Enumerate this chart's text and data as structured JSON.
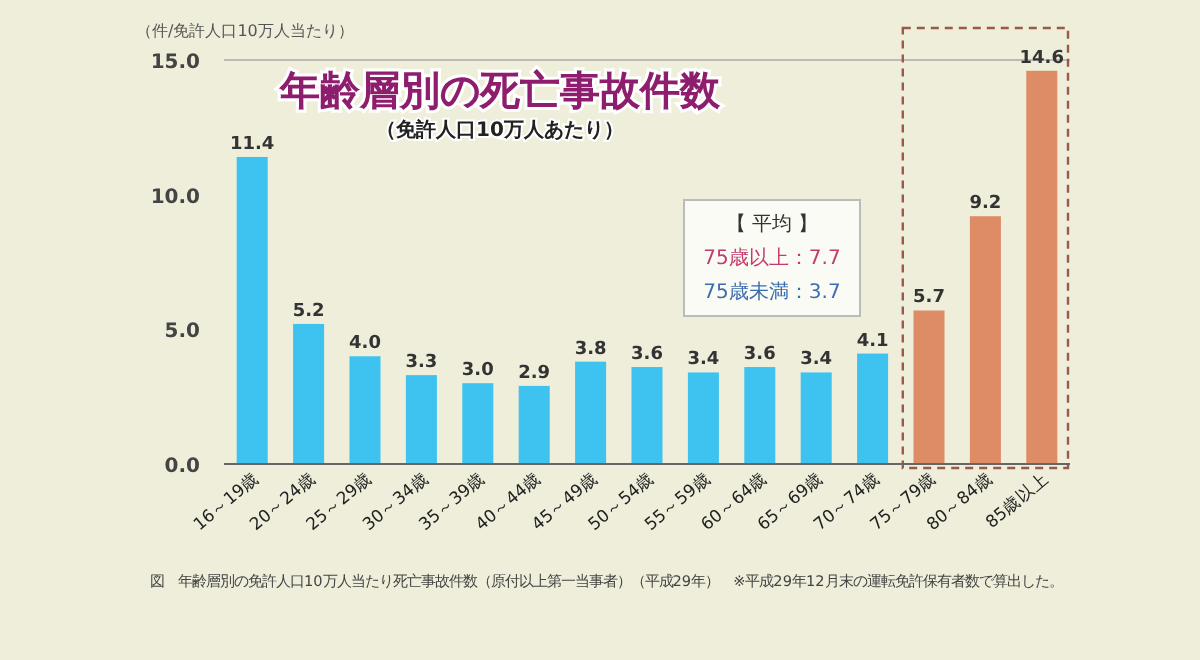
{
  "chart_data": {
    "type": "bar",
    "title": "年齢層別の死亡事故件数",
    "subtitle": "（免許人口10万人あたり）",
    "ylabel": "（件/免許人口10万人当たり）",
    "categories": [
      "16～19歳",
      "20～24歳",
      "25～29歳",
      "30～34歳",
      "35～39歳",
      "40～44歳",
      "45～49歳",
      "50～54歳",
      "55～59歳",
      "60～64歳",
      "65～69歳",
      "70～74歳",
      "75～79歳",
      "80～84歳",
      "85歳以上"
    ],
    "values": [
      11.4,
      5.2,
      4.0,
      3.3,
      3.0,
      2.9,
      3.8,
      3.6,
      3.4,
      3.6,
      3.4,
      4.1,
      5.7,
      9.2,
      14.6
    ],
    "colors": [
      "#3ec3f0",
      "#3ec3f0",
      "#3ec3f0",
      "#3ec3f0",
      "#3ec3f0",
      "#3ec3f0",
      "#3ec3f0",
      "#3ec3f0",
      "#3ec3f0",
      "#3ec3f0",
      "#3ec3f0",
      "#3ec3f0",
      "#dd8c66",
      "#dd8c66",
      "#dd8c66"
    ],
    "value_labels": [
      "11.4",
      "5.2",
      "4.0",
      "3.3",
      "3.0",
      "2.9",
      "3.8",
      "3.6",
      "3.4",
      "3.6",
      "3.4",
      "4.1",
      "5.7",
      "9.2",
      "14.6"
    ],
    "ylim": [
      0,
      15
    ],
    "yticks": [
      {
        "value": 0,
        "label": "0.0"
      },
      {
        "value": 5,
        "label": "5.0"
      },
      {
        "value": 10,
        "label": "10.0"
      },
      {
        "value": 15,
        "label": "15.0"
      }
    ],
    "annotations": [
      "【 平均 】",
      "75歳以上：7.7",
      "75歳未満：3.7",
      "図　年齢層別の免許人口10万人当たり死亡事故件数（原付以上第一当事者）（平成29年）　※平成29年12月末の運転免許保有者数で算出した。"
    ]
  }
}
